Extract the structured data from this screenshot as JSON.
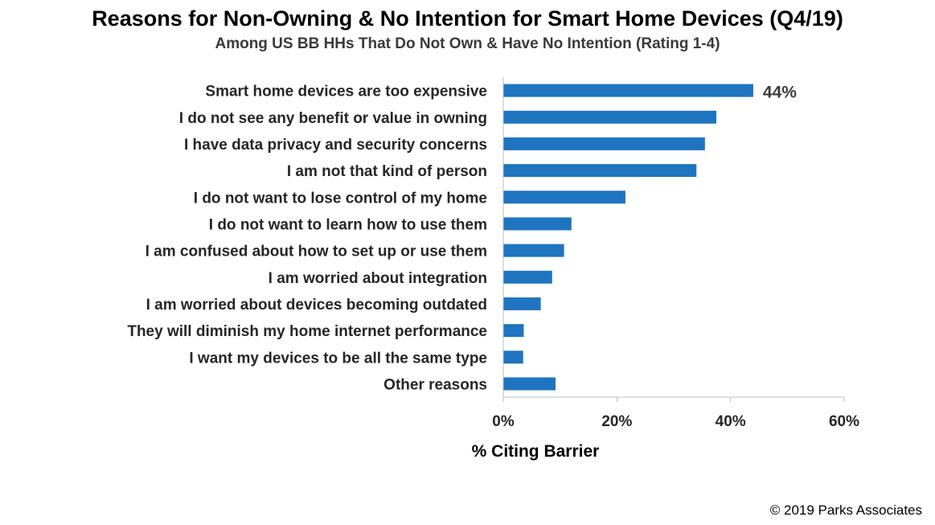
{
  "title": "Reasons for Non-Owning & No Intention for Smart Home Devices (Q4/19)",
  "subtitle": "Among US BB HHs That Do Not Own & Have No Intention  (Rating 1-4)",
  "copyright": "© 2019 Parks Associates",
  "chart_data": {
    "type": "bar",
    "orientation": "horizontal",
    "categories": [
      "Smart home devices are too expensive",
      "I do not see any benefit or value in owning",
      "I have data privacy and security concerns",
      "I am not that kind of person",
      "I do not want to lose control of my home",
      "I do not want to learn how to use them",
      "I am confused about how to set up or use them",
      "I am worried about integration",
      "I am worried about devices becoming outdated",
      "They will diminish my home internet performance",
      "I want my devices to be all the same type",
      "Other reasons"
    ],
    "values": [
      44,
      37.5,
      35.5,
      34,
      21.5,
      12,
      10.7,
      8.6,
      6.6,
      3.6,
      3.5,
      9.2
    ],
    "data_labels": [
      {
        "index": 0,
        "text": "44%"
      }
    ],
    "xlabel": "% Citing Barrier",
    "xlim": [
      0,
      60
    ],
    "xticks": [
      0,
      20,
      40,
      60
    ],
    "xtick_labels": [
      "0%",
      "20%",
      "40%",
      "60%"
    ],
    "grid": false,
    "bar_color": "#1f74c0"
  }
}
